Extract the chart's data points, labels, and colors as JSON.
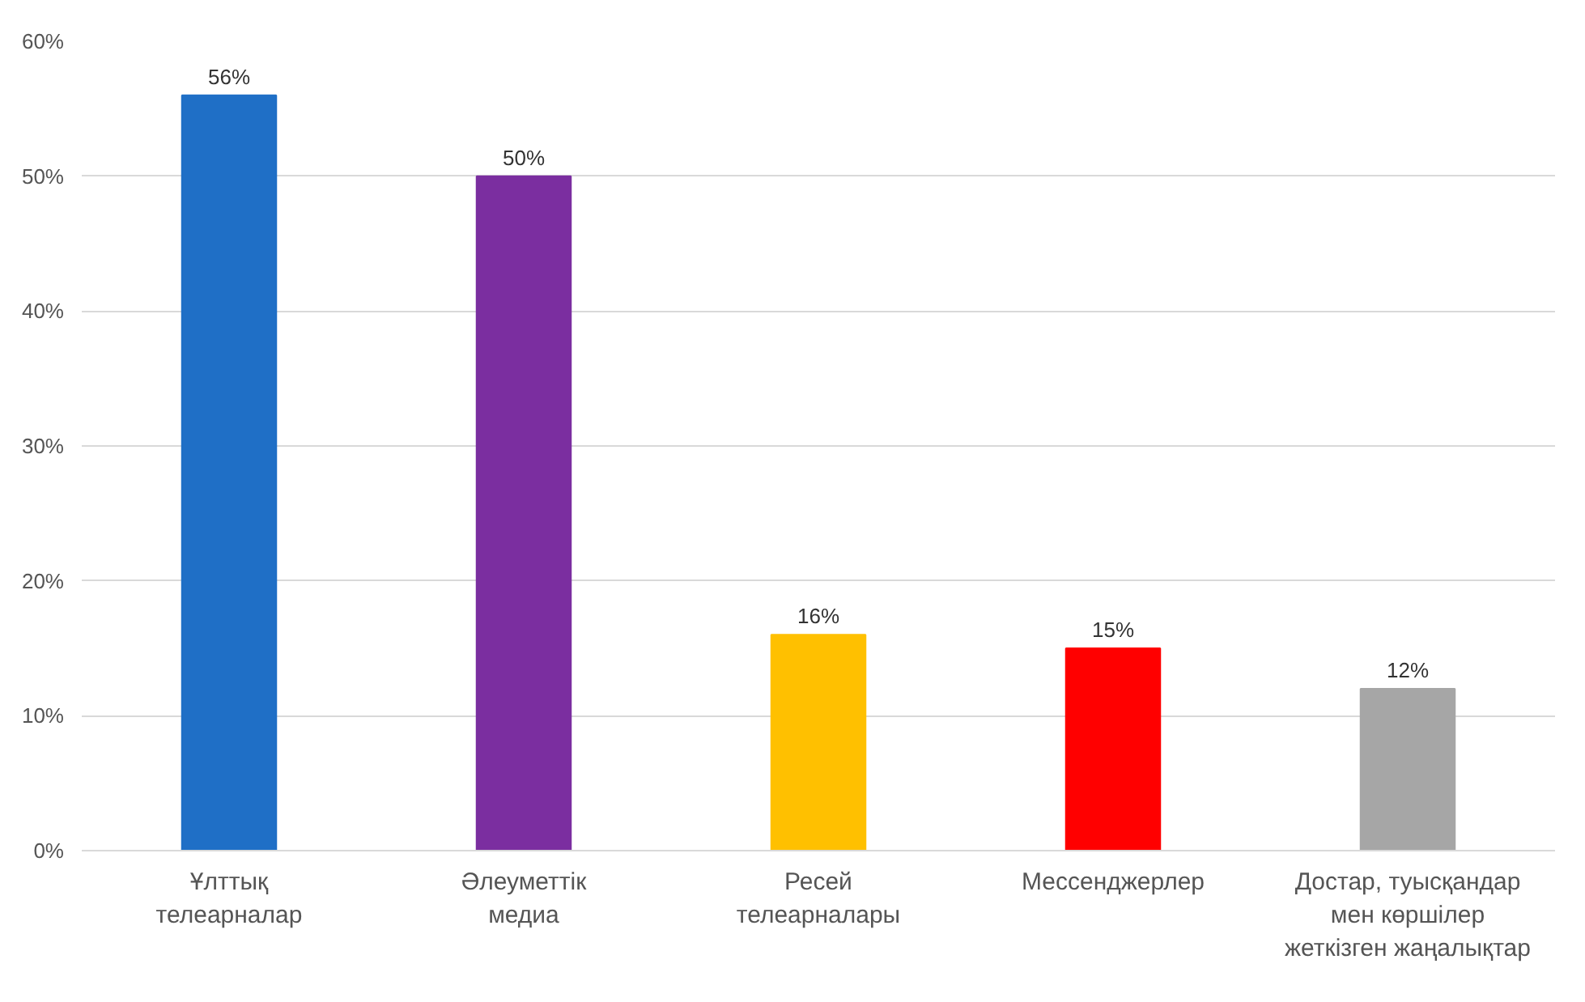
{
  "chart_data": {
    "type": "bar",
    "categories": [
      "Ұлттық\nтелеарналар",
      "Әлеуметтік\nмедиа",
      "Ресей\nтелеарналары",
      "Мессенджерлер",
      "Достар, туысқандар\nмен көршілер\nжеткізген жаңалықтар"
    ],
    "values": [
      56,
      50,
      16,
      15,
      12
    ],
    "colors": [
      "#1f6fc6",
      "#7b2ea0",
      "#ffc000",
      "#ff0000",
      "#a6a6a6"
    ],
    "value_labels": [
      "56%",
      "50%",
      "16%",
      "15%",
      "12%"
    ],
    "ylim": [
      0,
      60
    ],
    "yticks": [
      {
        "value": 0,
        "label": "0%"
      },
      {
        "value": 10,
        "label": "10%"
      },
      {
        "value": 20,
        "label": "20%"
      },
      {
        "value": 30,
        "label": "30%"
      },
      {
        "value": 40,
        "label": "40%"
      },
      {
        "value": 50,
        "label": "50%"
      },
      {
        "value": 60,
        "label": "60%"
      }
    ],
    "grid": "y"
  }
}
